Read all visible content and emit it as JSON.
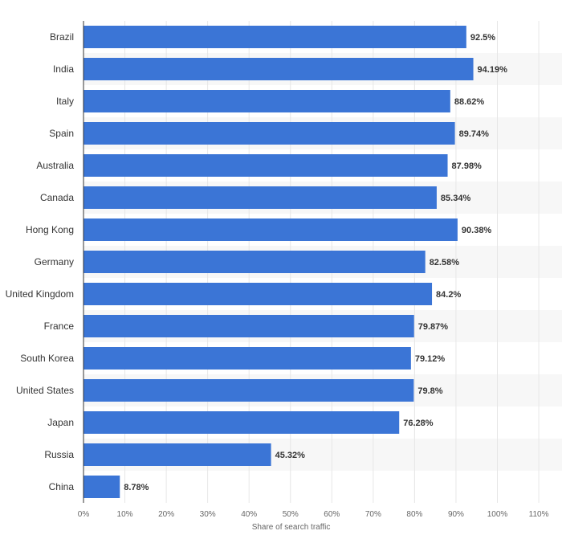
{
  "chart_data": {
    "type": "bar",
    "orientation": "horizontal",
    "categories": [
      "Brazil",
      "India",
      "Italy",
      "Spain",
      "Australia",
      "Canada",
      "Hong Kong",
      "Germany",
      "United Kingdom",
      "France",
      "South Korea",
      "United States",
      "Japan",
      "Russia",
      "China"
    ],
    "values": [
      92.5,
      94.19,
      88.62,
      89.74,
      87.98,
      85.34,
      90.38,
      82.58,
      84.2,
      79.87,
      79.12,
      79.8,
      76.28,
      45.32,
      8.78
    ],
    "value_labels": [
      "92.5%",
      "94.19%",
      "88.62%",
      "89.74%",
      "87.98%",
      "85.34%",
      "90.38%",
      "82.58%",
      "84.2%",
      "79.87%",
      "79.12%",
      "79.8%",
      "76.28%",
      "45.32%",
      "8.78%"
    ],
    "xlabel": "Share of search traffic",
    "ylabel": "",
    "xlim": [
      0,
      110
    ],
    "xticks": [
      "0%",
      "10%",
      "20%",
      "30%",
      "40%",
      "50%",
      "60%",
      "70%",
      "80%",
      "90%",
      "100%",
      "110%"
    ],
    "grid": true,
    "colors": {
      "bar": "#3b75d6",
      "stripe": "#f7f7f7",
      "grid": "#e6e6e6",
      "axis": "#333333"
    }
  }
}
